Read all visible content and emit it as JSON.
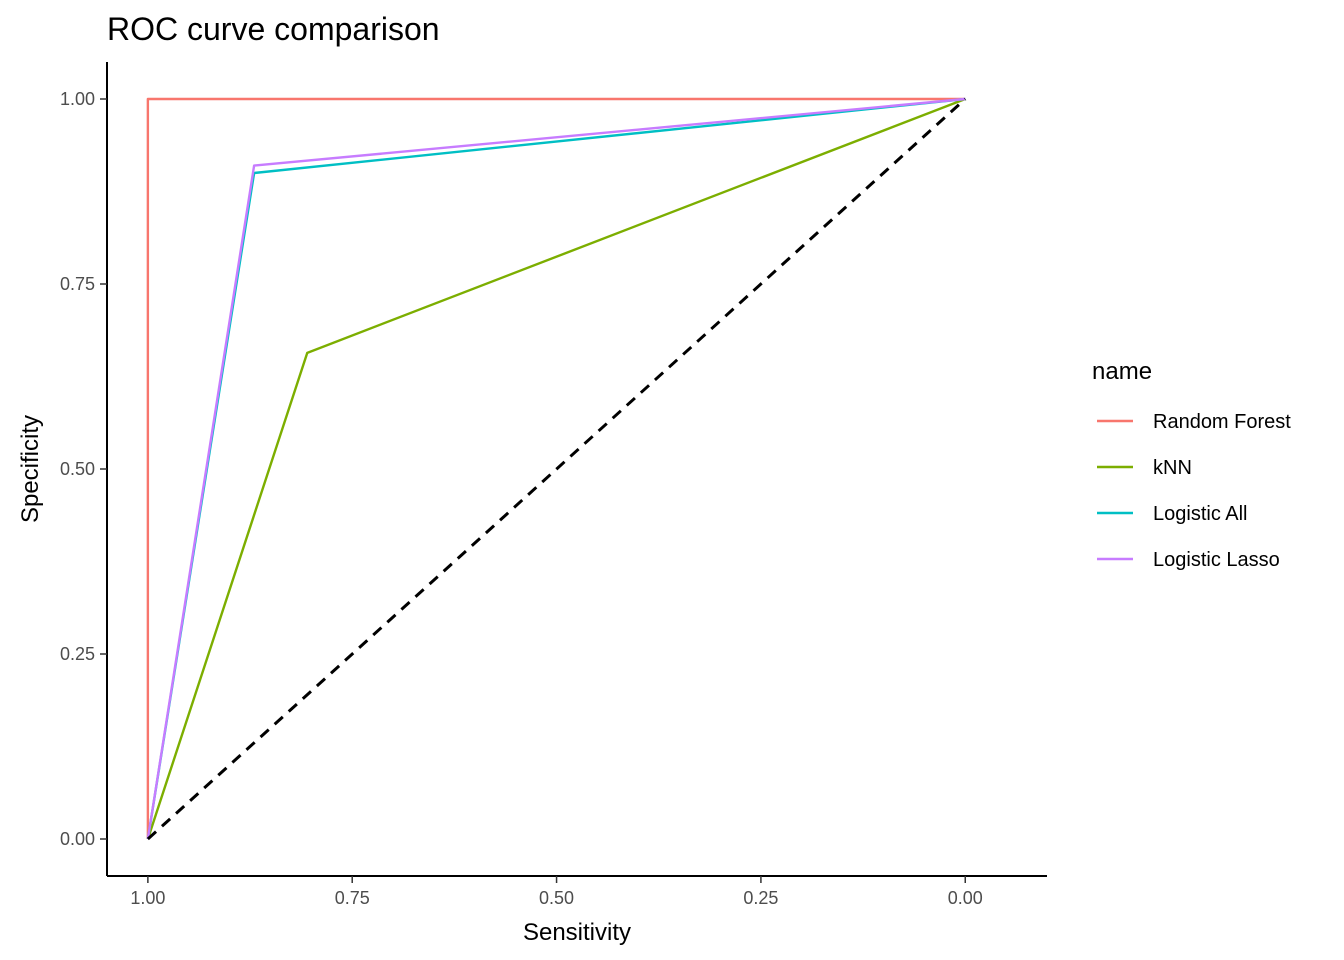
{
  "chart_data": {
    "type": "line",
    "title": "ROC curve comparison",
    "xlabel": "Sensitivity",
    "ylabel": "Specificity",
    "x_reversed": true,
    "xlim": [
      1.05,
      -0.1
    ],
    "ylim": [
      -0.05,
      1.05
    ],
    "x_ticks": [
      1.0,
      0.75,
      0.5,
      0.25,
      0.0
    ],
    "x_tick_labels": [
      "1.00",
      "0.75",
      "0.50",
      "0.25",
      "0.00"
    ],
    "y_ticks": [
      0.0,
      0.25,
      0.5,
      0.75,
      1.0
    ],
    "y_tick_labels": [
      "0.00",
      "0.25",
      "0.50",
      "0.75",
      "1.00"
    ],
    "grid": false,
    "legend": {
      "title": "name",
      "position": "right"
    },
    "series": [
      {
        "name": "Random Forest",
        "color": "#F8766D",
        "points": [
          [
            1.0,
            0.0
          ],
          [
            1.0,
            1.0
          ],
          [
            0.0,
            1.0
          ]
        ]
      },
      {
        "name": "kNN",
        "color": "#7CAE00",
        "points": [
          [
            1.0,
            0.0
          ],
          [
            0.805,
            0.657
          ],
          [
            0.0,
            1.0
          ]
        ]
      },
      {
        "name": "Logistic All",
        "color": "#00BFC4",
        "points": [
          [
            1.0,
            0.0
          ],
          [
            0.87,
            0.9
          ],
          [
            0.0,
            1.0
          ]
        ]
      },
      {
        "name": "Logistic Lasso",
        "color": "#C77CFF",
        "points": [
          [
            1.0,
            0.0
          ],
          [
            0.87,
            0.91
          ],
          [
            0.0,
            1.0
          ]
        ]
      }
    ],
    "reference_line": {
      "style": "dashed",
      "color": "#000000",
      "points": [
        [
          1.0,
          0.0
        ],
        [
          0.0,
          1.0
        ]
      ]
    }
  }
}
